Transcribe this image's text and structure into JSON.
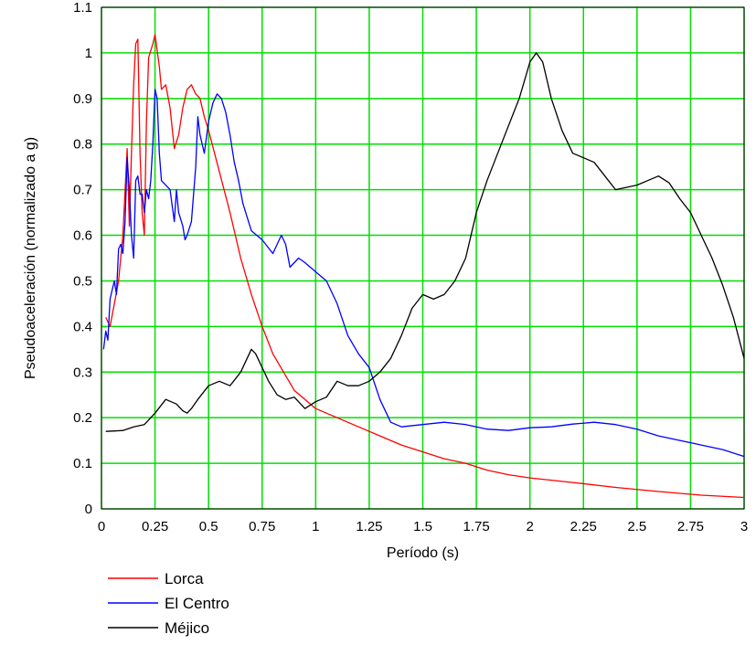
{
  "chart_data": {
    "type": "line",
    "title": "",
    "xlabel": "Período (s)",
    "ylabel": "Pseudoaceleración (normalizado a g)",
    "xlim": [
      0,
      3
    ],
    "ylim": [
      0,
      1.1
    ],
    "grid": true,
    "grid_color": "#00e000",
    "legend_position": "bottom-left",
    "x_ticks": [
      "0",
      "0.25",
      "0.5",
      "0.75",
      "1",
      "1.25",
      "1.5",
      "1.75",
      "2",
      "2.25",
      "2.5",
      "2.75",
      "3"
    ],
    "y_ticks": [
      "0",
      "0.1",
      "0.2",
      "0.3",
      "0.4",
      "0.5",
      "0.6",
      "0.7",
      "0.8",
      "0.9",
      "1",
      "1.1"
    ],
    "series": [
      {
        "name": "Lorca",
        "color": "#ff0000",
        "points": [
          [
            0.02,
            0.42
          ],
          [
            0.04,
            0.4
          ],
          [
            0.06,
            0.45
          ],
          [
            0.08,
            0.5
          ],
          [
            0.1,
            0.6
          ],
          [
            0.12,
            0.79
          ],
          [
            0.13,
            0.62
          ],
          [
            0.14,
            0.78
          ],
          [
            0.15,
            0.93
          ],
          [
            0.16,
            1.02
          ],
          [
            0.17,
            1.03
          ],
          [
            0.18,
            0.78
          ],
          [
            0.19,
            0.65
          ],
          [
            0.2,
            0.6
          ],
          [
            0.21,
            0.85
          ],
          [
            0.22,
            0.99
          ],
          [
            0.24,
            1.02
          ],
          [
            0.25,
            1.04
          ],
          [
            0.27,
            0.97
          ],
          [
            0.28,
            0.92
          ],
          [
            0.3,
            0.93
          ],
          [
            0.32,
            0.88
          ],
          [
            0.34,
            0.79
          ],
          [
            0.36,
            0.82
          ],
          [
            0.38,
            0.88
          ],
          [
            0.4,
            0.92
          ],
          [
            0.42,
            0.93
          ],
          [
            0.44,
            0.91
          ],
          [
            0.46,
            0.9
          ],
          [
            0.48,
            0.86
          ],
          [
            0.5,
            0.83
          ],
          [
            0.55,
            0.74
          ],
          [
            0.6,
            0.65
          ],
          [
            0.65,
            0.55
          ],
          [
            0.7,
            0.47
          ],
          [
            0.75,
            0.4
          ],
          [
            0.8,
            0.34
          ],
          [
            0.85,
            0.3
          ],
          [
            0.9,
            0.26
          ],
          [
            0.95,
            0.24
          ],
          [
            1.0,
            0.22
          ],
          [
            1.1,
            0.2
          ],
          [
            1.2,
            0.18
          ],
          [
            1.3,
            0.16
          ],
          [
            1.4,
            0.14
          ],
          [
            1.5,
            0.125
          ],
          [
            1.6,
            0.11
          ],
          [
            1.7,
            0.1
          ],
          [
            1.8,
            0.085
          ],
          [
            1.9,
            0.075
          ],
          [
            2.0,
            0.068
          ],
          [
            2.2,
            0.058
          ],
          [
            2.4,
            0.047
          ],
          [
            2.6,
            0.038
          ],
          [
            2.8,
            0.03
          ],
          [
            3.0,
            0.025
          ]
        ]
      },
      {
        "name": "El Centro",
        "color": "#0000ff",
        "points": [
          [
            0.01,
            0.35
          ],
          [
            0.02,
            0.39
          ],
          [
            0.03,
            0.37
          ],
          [
            0.04,
            0.46
          ],
          [
            0.05,
            0.48
          ],
          [
            0.06,
            0.5
          ],
          [
            0.07,
            0.47
          ],
          [
            0.08,
            0.57
          ],
          [
            0.09,
            0.58
          ],
          [
            0.1,
            0.56
          ],
          [
            0.11,
            0.63
          ],
          [
            0.12,
            0.77
          ],
          [
            0.13,
            0.7
          ],
          [
            0.14,
            0.6
          ],
          [
            0.15,
            0.55
          ],
          [
            0.16,
            0.72
          ],
          [
            0.17,
            0.73
          ],
          [
            0.18,
            0.69
          ],
          [
            0.19,
            0.69
          ],
          [
            0.2,
            0.65
          ],
          [
            0.21,
            0.7
          ],
          [
            0.22,
            0.68
          ],
          [
            0.23,
            0.72
          ],
          [
            0.24,
            0.8
          ],
          [
            0.25,
            0.92
          ],
          [
            0.26,
            0.9
          ],
          [
            0.27,
            0.78
          ],
          [
            0.28,
            0.72
          ],
          [
            0.3,
            0.71
          ],
          [
            0.32,
            0.7
          ],
          [
            0.34,
            0.63
          ],
          [
            0.35,
            0.7
          ],
          [
            0.36,
            0.65
          ],
          [
            0.38,
            0.62
          ],
          [
            0.39,
            0.59
          ],
          [
            0.4,
            0.6
          ],
          [
            0.42,
            0.63
          ],
          [
            0.44,
            0.75
          ],
          [
            0.45,
            0.86
          ],
          [
            0.46,
            0.82
          ],
          [
            0.48,
            0.78
          ],
          [
            0.5,
            0.85
          ],
          [
            0.52,
            0.89
          ],
          [
            0.54,
            0.91
          ],
          [
            0.56,
            0.9
          ],
          [
            0.58,
            0.87
          ],
          [
            0.6,
            0.82
          ],
          [
            0.62,
            0.76
          ],
          [
            0.64,
            0.72
          ],
          [
            0.66,
            0.67
          ],
          [
            0.68,
            0.64
          ],
          [
            0.7,
            0.61
          ],
          [
            0.75,
            0.59
          ],
          [
            0.8,
            0.56
          ],
          [
            0.84,
            0.6
          ],
          [
            0.86,
            0.58
          ],
          [
            0.88,
            0.53
          ],
          [
            0.92,
            0.55
          ],
          [
            0.95,
            0.54
          ],
          [
            1.0,
            0.52
          ],
          [
            1.05,
            0.5
          ],
          [
            1.1,
            0.45
          ],
          [
            1.15,
            0.38
          ],
          [
            1.2,
            0.34
          ],
          [
            1.25,
            0.31
          ],
          [
            1.3,
            0.24
          ],
          [
            1.35,
            0.19
          ],
          [
            1.4,
            0.18
          ],
          [
            1.5,
            0.185
          ],
          [
            1.6,
            0.19
          ],
          [
            1.7,
            0.185
          ],
          [
            1.8,
            0.175
          ],
          [
            1.9,
            0.172
          ],
          [
            2.0,
            0.178
          ],
          [
            2.1,
            0.18
          ],
          [
            2.2,
            0.186
          ],
          [
            2.3,
            0.19
          ],
          [
            2.4,
            0.185
          ],
          [
            2.5,
            0.175
          ],
          [
            2.6,
            0.16
          ],
          [
            2.7,
            0.15
          ],
          [
            2.8,
            0.14
          ],
          [
            2.9,
            0.13
          ],
          [
            3.0,
            0.115
          ]
        ]
      },
      {
        "name": "Méjico",
        "color": "#000000",
        "points": [
          [
            0.02,
            0.17
          ],
          [
            0.1,
            0.172
          ],
          [
            0.15,
            0.18
          ],
          [
            0.2,
            0.185
          ],
          [
            0.25,
            0.21
          ],
          [
            0.3,
            0.24
          ],
          [
            0.35,
            0.23
          ],
          [
            0.38,
            0.215
          ],
          [
            0.4,
            0.21
          ],
          [
            0.42,
            0.22
          ],
          [
            0.45,
            0.24
          ],
          [
            0.5,
            0.27
          ],
          [
            0.55,
            0.28
          ],
          [
            0.6,
            0.27
          ],
          [
            0.65,
            0.3
          ],
          [
            0.68,
            0.33
          ],
          [
            0.7,
            0.35
          ],
          [
            0.72,
            0.34
          ],
          [
            0.75,
            0.31
          ],
          [
            0.78,
            0.28
          ],
          [
            0.82,
            0.25
          ],
          [
            0.86,
            0.24
          ],
          [
            0.9,
            0.245
          ],
          [
            0.95,
            0.22
          ],
          [
            1.0,
            0.235
          ],
          [
            1.05,
            0.245
          ],
          [
            1.1,
            0.28
          ],
          [
            1.15,
            0.27
          ],
          [
            1.2,
            0.27
          ],
          [
            1.25,
            0.28
          ],
          [
            1.3,
            0.3
          ],
          [
            1.35,
            0.33
          ],
          [
            1.4,
            0.38
          ],
          [
            1.45,
            0.44
          ],
          [
            1.5,
            0.47
          ],
          [
            1.55,
            0.46
          ],
          [
            1.6,
            0.47
          ],
          [
            1.65,
            0.5
          ],
          [
            1.7,
            0.55
          ],
          [
            1.75,
            0.65
          ],
          [
            1.8,
            0.72
          ],
          [
            1.85,
            0.78
          ],
          [
            1.9,
            0.84
          ],
          [
            1.95,
            0.9
          ],
          [
            2.0,
            0.98
          ],
          [
            2.03,
            1.0
          ],
          [
            2.06,
            0.98
          ],
          [
            2.1,
            0.9
          ],
          [
            2.15,
            0.83
          ],
          [
            2.2,
            0.78
          ],
          [
            2.25,
            0.77
          ],
          [
            2.3,
            0.76
          ],
          [
            2.35,
            0.73
          ],
          [
            2.4,
            0.7
          ],
          [
            2.45,
            0.705
          ],
          [
            2.5,
            0.71
          ],
          [
            2.55,
            0.72
          ],
          [
            2.6,
            0.73
          ],
          [
            2.65,
            0.715
          ],
          [
            2.7,
            0.68
          ],
          [
            2.75,
            0.65
          ],
          [
            2.8,
            0.6
          ],
          [
            2.85,
            0.55
          ],
          [
            2.9,
            0.49
          ],
          [
            2.95,
            0.42
          ],
          [
            3.0,
            0.33
          ]
        ]
      }
    ]
  }
}
